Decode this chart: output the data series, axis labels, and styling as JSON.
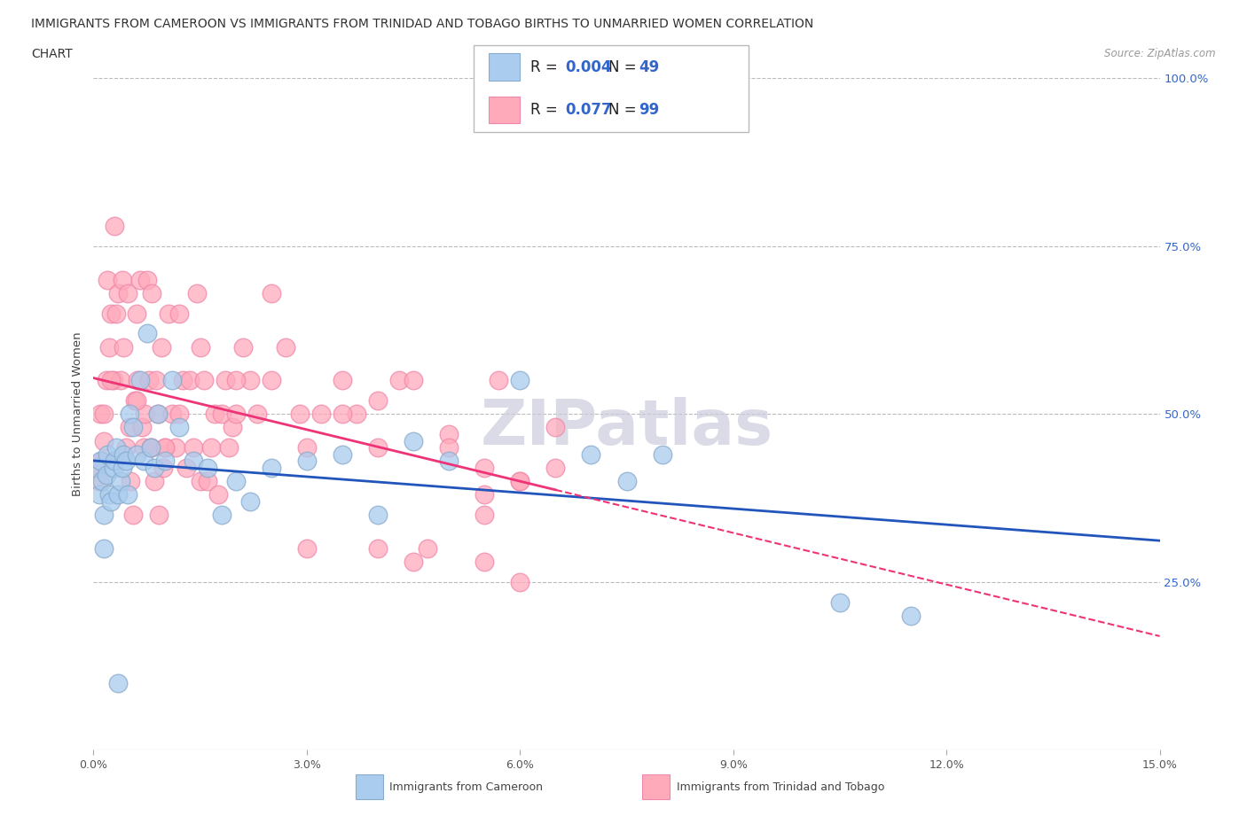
{
  "title_line1": "IMMIGRANTS FROM CAMEROON VS IMMIGRANTS FROM TRINIDAD AND TOBAGO BIRTHS TO UNMARRIED WOMEN CORRELATION",
  "title_line2": "CHART",
  "source": "Source: ZipAtlas.com",
  "ylabel": "Births to Unmarried Women",
  "xlim": [
    0.0,
    15.0
  ],
  "ylim": [
    0.0,
    100.0
  ],
  "xticks": [
    0.0,
    3.0,
    6.0,
    9.0,
    12.0,
    15.0
  ],
  "xticklabels": [
    "0.0%",
    "3.0%",
    "6.0%",
    "9.0%",
    "12.0%",
    "15.0%"
  ],
  "yticks": [
    25.0,
    50.0,
    75.0,
    100.0
  ],
  "yticklabels": [
    "25.0%",
    "50.0%",
    "75.0%",
    "100.0%"
  ],
  "blue_R": 0.004,
  "blue_N": 49,
  "pink_R": 0.077,
  "pink_N": 99,
  "blue_fill": "#AACCEE",
  "blue_edge": "#88AACC",
  "pink_fill": "#FFAABB",
  "pink_edge": "#EE88AA",
  "blue_line_color": "#2255BB",
  "pink_line_color": "#EE3377",
  "watermark": "ZIPatlas",
  "watermark_color": "#CCCCDD",
  "grid_color": "#BBBBBB",
  "blue_scatter_x": [
    0.05,
    0.08,
    0.1,
    0.12,
    0.15,
    0.18,
    0.2,
    0.22,
    0.25,
    0.28,
    0.3,
    0.32,
    0.35,
    0.38,
    0.4,
    0.42,
    0.45,
    0.48,
    0.5,
    0.55,
    0.6,
    0.65,
    0.7,
    0.75,
    0.8,
    0.85,
    0.9,
    1.0,
    1.1,
    1.2,
    1.4,
    1.6,
    1.8,
    2.0,
    2.2,
    2.5,
    3.0,
    3.5,
    4.0,
    4.5,
    5.0,
    6.0,
    7.0,
    7.5,
    8.0,
    10.5,
    11.5,
    0.15,
    0.35
  ],
  "blue_scatter_y": [
    42,
    38,
    43,
    40,
    35,
    41,
    44,
    38,
    37,
    42,
    43,
    45,
    38,
    40,
    42,
    44,
    43,
    38,
    50,
    48,
    44,
    55,
    43,
    62,
    45,
    42,
    50,
    43,
    55,
    48,
    43,
    42,
    35,
    40,
    37,
    42,
    43,
    44,
    35,
    46,
    43,
    55,
    44,
    40,
    44,
    22,
    20,
    30,
    10
  ],
  "pink_scatter_x": [
    0.05,
    0.08,
    0.1,
    0.12,
    0.15,
    0.18,
    0.2,
    0.22,
    0.25,
    0.28,
    0.3,
    0.32,
    0.35,
    0.38,
    0.4,
    0.42,
    0.45,
    0.48,
    0.5,
    0.52,
    0.55,
    0.58,
    0.6,
    0.62,
    0.65,
    0.68,
    0.7,
    0.72,
    0.75,
    0.78,
    0.8,
    0.82,
    0.85,
    0.88,
    0.9,
    0.92,
    0.95,
    0.98,
    1.0,
    1.05,
    1.1,
    1.15,
    1.2,
    1.25,
    1.3,
    1.35,
    1.4,
    1.45,
    1.5,
    1.55,
    1.6,
    1.65,
    1.7,
    1.75,
    1.8,
    1.85,
    1.9,
    1.95,
    2.0,
    2.1,
    2.2,
    2.3,
    2.5,
    2.7,
    2.9,
    3.0,
    3.2,
    3.5,
    3.7,
    4.0,
    4.3,
    4.7,
    5.0,
    5.5,
    6.0,
    6.5,
    0.15,
    0.25,
    0.6,
    0.8,
    1.0,
    1.2,
    1.5,
    2.0,
    2.5,
    3.0,
    3.5,
    4.0,
    4.5,
    5.0,
    5.5,
    6.0,
    4.5,
    4.0,
    5.5,
    6.0,
    5.7,
    5.5,
    6.5
  ],
  "pink_scatter_y": [
    42,
    40,
    50,
    43,
    46,
    55,
    70,
    60,
    65,
    55,
    78,
    65,
    68,
    55,
    70,
    60,
    45,
    68,
    48,
    40,
    35,
    52,
    65,
    55,
    70,
    48,
    45,
    50,
    70,
    55,
    45,
    68,
    40,
    55,
    50,
    35,
    60,
    42,
    45,
    65,
    50,
    45,
    65,
    55,
    42,
    55,
    45,
    68,
    40,
    55,
    40,
    45,
    50,
    38,
    50,
    55,
    45,
    48,
    50,
    60,
    55,
    50,
    55,
    60,
    50,
    45,
    50,
    55,
    50,
    52,
    55,
    30,
    47,
    42,
    40,
    48,
    50,
    55,
    52,
    45,
    45,
    50,
    60,
    55,
    68,
    30,
    50,
    45,
    55,
    45,
    28,
    25,
    28,
    30,
    35,
    40,
    55,
    38,
    42
  ],
  "legend_blue_label1": "R = ",
  "legend_blue_R": "0.004",
  "legend_blue_N": "  N = ",
  "legend_blue_Nval": "49",
  "legend_pink_R": "0.077",
  "legend_pink_Nval": "99",
  "bottom_legend_blue": "Immigrants from Cameroon",
  "bottom_legend_pink": "Immigrants from Trinidad and Tobago"
}
